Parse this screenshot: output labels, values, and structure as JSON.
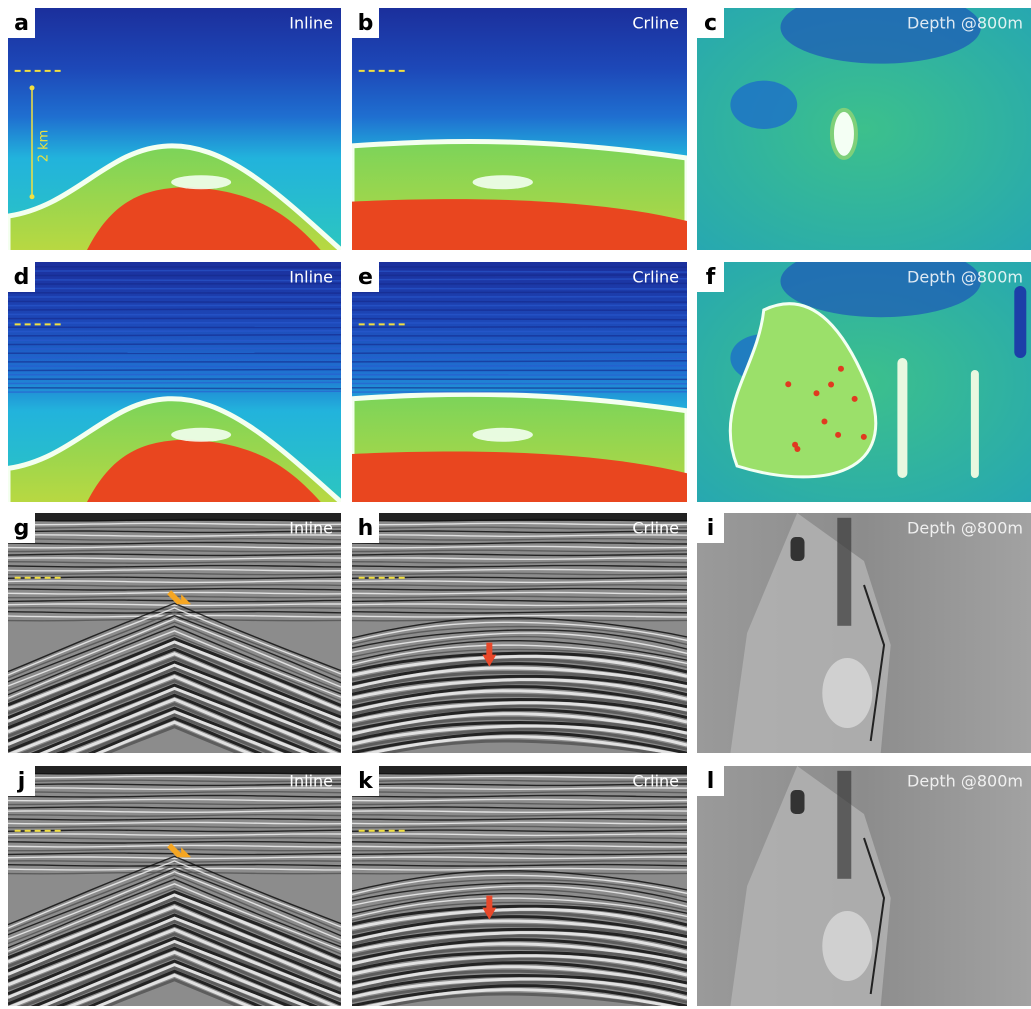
{
  "panels": [
    {
      "label": "a",
      "caption": "Inline"
    },
    {
      "label": "b",
      "caption": "Crline"
    },
    {
      "label": "c",
      "caption": "Depth @800m"
    },
    {
      "label": "d",
      "caption": "Inline"
    },
    {
      "label": "e",
      "caption": "Crline"
    },
    {
      "label": "f",
      "caption": "Depth @800m"
    },
    {
      "label": "g",
      "caption": "Inline"
    },
    {
      "label": "h",
      "caption": "Crline"
    },
    {
      "label": "i",
      "caption": "Depth @800m"
    },
    {
      "label": "j",
      "caption": "Inline"
    },
    {
      "label": "k",
      "caption": "Crline"
    },
    {
      "label": "l",
      "caption": "Depth @800m"
    }
  ],
  "scale_label": "2 km"
}
